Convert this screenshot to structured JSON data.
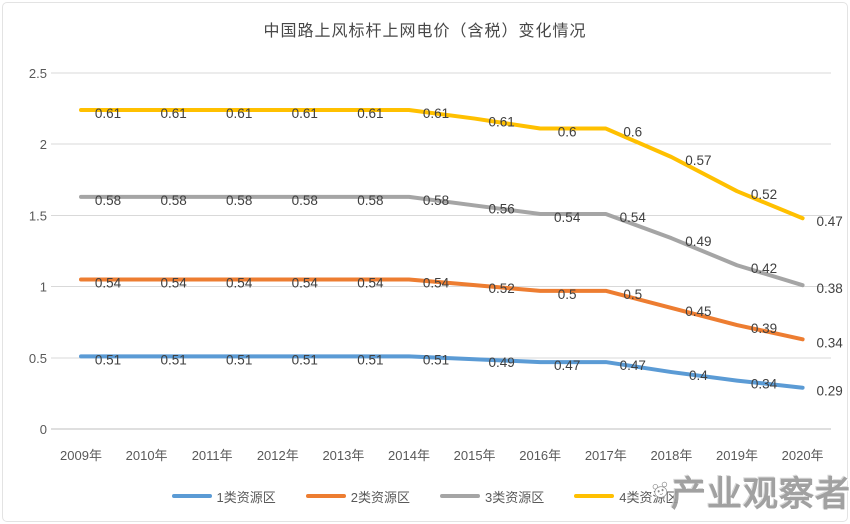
{
  "chart_data": {
    "type": "line",
    "stacked": true,
    "title": "中国路上风标杆上网电价（含税）变化情况",
    "categories": [
      "2009年",
      "2010年",
      "2011年",
      "2012年",
      "2013年",
      "2014年",
      "2015年",
      "2016年",
      "2017年",
      "2018年",
      "2019年",
      "2020年"
    ],
    "series": [
      {
        "name": "1类资源区",
        "color": "#5B9BD5",
        "values": [
          0.51,
          0.51,
          0.51,
          0.51,
          0.51,
          0.51,
          0.49,
          0.47,
          0.47,
          0.4,
          0.34,
          0.29
        ]
      },
      {
        "name": "2类资源区",
        "color": "#ED7D31",
        "values": [
          0.54,
          0.54,
          0.54,
          0.54,
          0.54,
          0.54,
          0.52,
          0.5,
          0.5,
          0.45,
          0.39,
          0.34
        ]
      },
      {
        "name": "3类资源区",
        "color": "#A5A5A5",
        "values": [
          0.58,
          0.58,
          0.58,
          0.58,
          0.58,
          0.58,
          0.56,
          0.54,
          0.54,
          0.49,
          0.42,
          0.38
        ]
      },
      {
        "name": "4类资源区",
        "color": "#FFC000",
        "values": [
          0.61,
          0.61,
          0.61,
          0.61,
          0.61,
          0.61,
          0.61,
          0.6,
          0.6,
          0.57,
          0.52,
          0.47
        ]
      }
    ],
    "yticks": [
      "0",
      "0.5",
      "1",
      "1.5",
      "2",
      "2.5"
    ],
    "ylim": [
      0,
      2.5
    ],
    "grid": true,
    "data_labels": true,
    "legend_position": "bottom",
    "xlabel": "",
    "ylabel": ""
  },
  "watermark": {
    "text": "产业观察者",
    "icon": "panda-icon"
  },
  "colors": {
    "grid": "#d9d9d9",
    "axis_line": "#bfbfbf",
    "tick_text": "#595959",
    "data_label_text": "#404040",
    "title_text": "#474747"
  }
}
